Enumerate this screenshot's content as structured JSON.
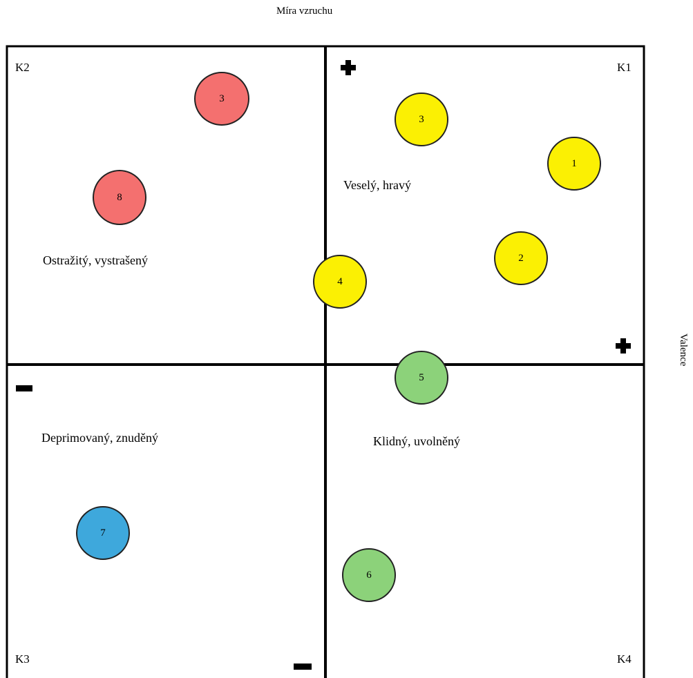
{
  "axes": {
    "vertical_label": "Míra vzruchu",
    "horizontal_label": "Valence",
    "plus_symbol": "✚",
    "minus_symbol": "▬"
  },
  "quadrants": {
    "k1": {
      "id": "K1",
      "label": "Veselý,  hravý"
    },
    "k2": {
      "id": "K2",
      "label": "Ostražitý,  vystrašený"
    },
    "k3": {
      "id": "K3",
      "label": "Deprimovaný,  znuděný"
    },
    "k4": {
      "id": "K4",
      "label": "Klidný,  uvolněný"
    }
  },
  "points": [
    {
      "label": "3",
      "color": "#f4706f",
      "quadrant": "K2"
    },
    {
      "label": "8",
      "color": "#f4706f",
      "quadrant": "K2"
    },
    {
      "label": "3",
      "color": "#fbf003",
      "quadrant": "K1"
    },
    {
      "label": "1",
      "color": "#fbf003",
      "quadrant": "K1"
    },
    {
      "label": "2",
      "color": "#fbf003",
      "quadrant": "K1"
    },
    {
      "label": "4",
      "color": "#fbf003",
      "quadrant": "K1"
    },
    {
      "label": "5",
      "color": "#8cd27a",
      "quadrant": "K4"
    },
    {
      "label": "7",
      "color": "#3ea8dc",
      "quadrant": "K3"
    },
    {
      "label": "6",
      "color": "#8cd27a",
      "quadrant": "K4"
    }
  ]
}
